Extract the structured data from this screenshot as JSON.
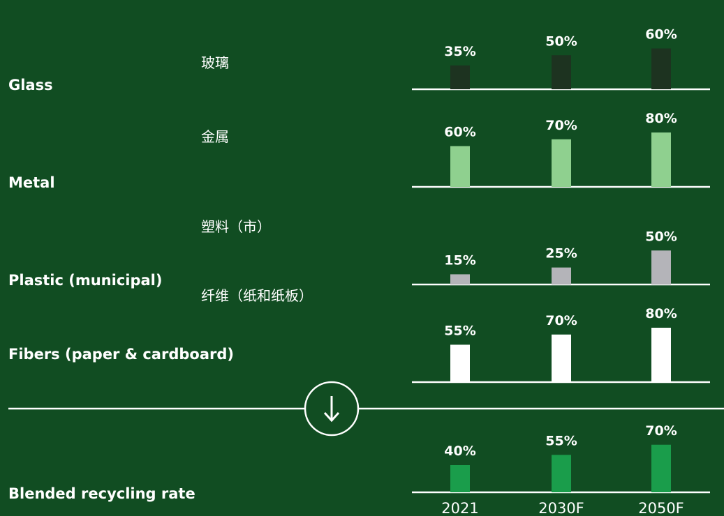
{
  "chart_data": {
    "type": "bar",
    "categories": [
      "2021",
      "2030F",
      "2050F"
    ],
    "series": [
      {
        "name": "Glass",
        "label_zh": "玻璃",
        "color": "#1d3320",
        "values": [
          35,
          50,
          60
        ],
        "value_labels": [
          "35%",
          "50%",
          "60%"
        ]
      },
      {
        "name": "Metal",
        "label_zh": "金属",
        "color": "#8fd08f",
        "values": [
          60,
          70,
          80
        ],
        "value_labels": [
          "60%",
          "70%",
          "80%"
        ]
      },
      {
        "name": "Plastic (municipal)",
        "label_zh": "塑料（市）",
        "color": "#b4b4b9",
        "values": [
          15,
          25,
          50
        ],
        "value_labels": [
          "15%",
          "25%",
          "50%"
        ]
      },
      {
        "name": "Fibers (paper & cardboard)",
        "label_zh": "纤维（纸和纸板）",
        "color": "#ffffff",
        "values": [
          55,
          70,
          80
        ],
        "value_labels": [
          "55%",
          "70%",
          "80%"
        ]
      },
      {
        "name": "Blended recycling rate",
        "color": "#1a9d4b",
        "values": [
          40,
          55,
          70
        ],
        "value_labels": [
          "40%",
          "55%",
          "70%"
        ]
      }
    ]
  }
}
